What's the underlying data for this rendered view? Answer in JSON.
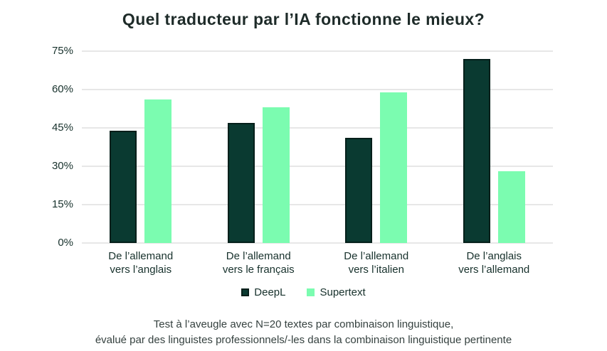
{
  "title": "Quel traducteur par l’IA fonctionne le mieux?",
  "footnote": {
    "line1": "Test à l’aveugle avec N=20 textes par combinaison linguistique,",
    "line2": "évalué par des linguistes professionnels/-les dans la combinaison linguistique pertinente"
  },
  "colors": {
    "deepl_fill": "#0a3a31",
    "deepl_border": "#041f1a",
    "supertext_fill": "#7bfcb0",
    "gridline": "#e7e7e7",
    "title_text": "#1e2b29",
    "axis_text": "#17312c",
    "footnote_text": "#35413f",
    "background": "#ffffff"
  },
  "chart_data": {
    "type": "bar",
    "title": "Quel traducteur par l’IA fonctionne le mieux?",
    "categories": [
      "De l’allemand\nvers l’anglais",
      "De l’allemand\nvers le français",
      "De l’allemand\nvers l’italien",
      "De l’anglais\nvers l’allemand"
    ],
    "series": [
      {
        "name": "DeepL",
        "values": [
          44,
          47,
          41,
          72
        ],
        "color": "#0a3a31",
        "border_color": "#041f1a"
      },
      {
        "name": "Supertext",
        "values": [
          56,
          53,
          59,
          28
        ],
        "color": "#7bfcb0"
      }
    ],
    "xlabel": "",
    "ylabel": "",
    "ylim": [
      0,
      75
    ],
    "yticks": [
      0,
      15,
      30,
      45,
      60,
      75
    ],
    "ytick_format": "{v}%",
    "grid": true,
    "legend_position": "bottom"
  }
}
